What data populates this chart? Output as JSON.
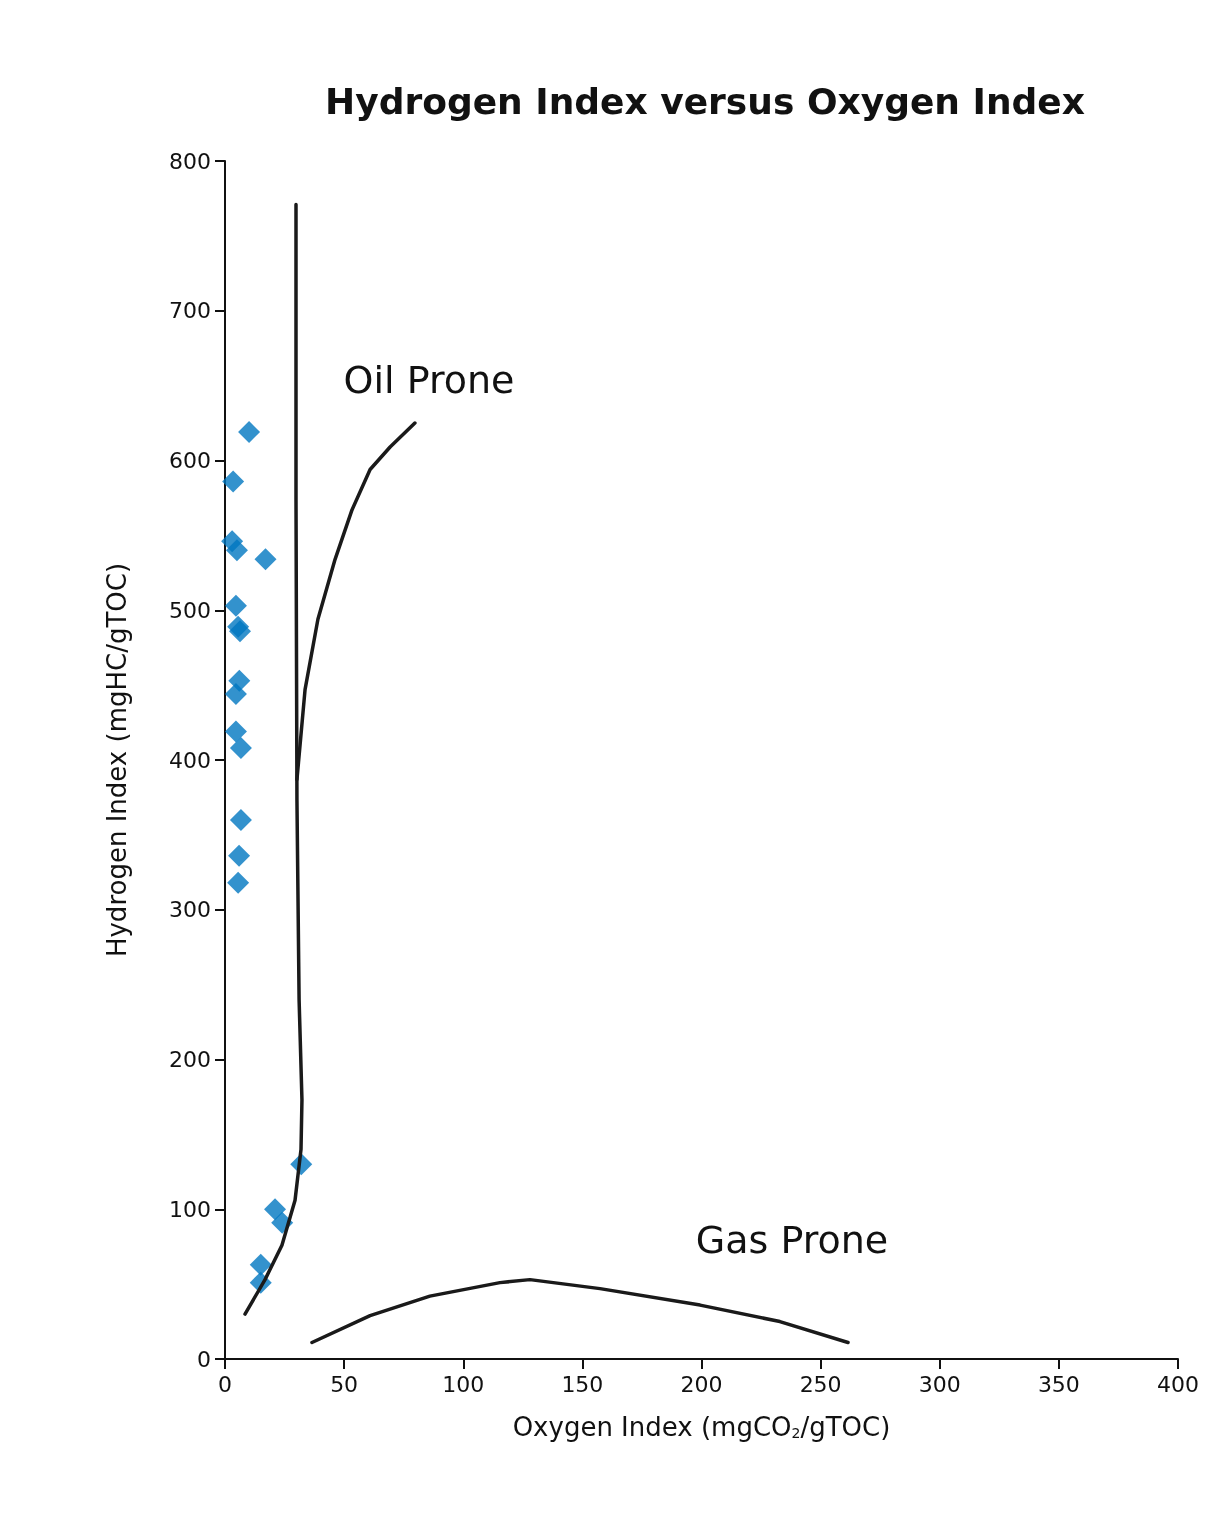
{
  "chart_data": {
    "type": "scatter",
    "title": "Hydrogen Index versus Oxygen Index",
    "xlabel": "Oxygen Index (mgCO$_{2}$/gTOC)",
    "ylabel": "Hydrogen Index (mgHC/gTOC)",
    "xlim": [
      0,
      400
    ],
    "xticks": [
      0,
      50,
      100,
      150,
      200,
      250,
      300,
      350,
      400
    ],
    "ylim": [
      0,
      800
    ],
    "yticks": [
      0,
      100,
      200,
      300,
      400,
      500,
      600,
      700,
      800
    ],
    "grid": false,
    "series": [
      {
        "marker": "diamond",
        "color": "#0077c0",
        "x": [
          10.1,
          3.4,
          3,
          5,
          17,
          4.6,
          5.5,
          6.3,
          6,
          4.6,
          4.6,
          6.7,
          6.7,
          5.9,
          5.5,
          32,
          21,
          24,
          15,
          15
        ],
        "values": [
          619,
          586,
          546,
          540,
          534,
          503,
          489,
          486,
          453,
          444,
          419,
          408,
          360,
          336,
          318,
          130,
          100,
          91,
          63,
          51
        ]
      },
      {
        "type": "line",
        "marker": "none",
        "line_style": "solid",
        "color": "#1a1a1a",
        "x": [
          8.4,
          16.8,
          23.9,
          29.4,
          31.9,
          32.3,
          31.1,
          30.2,
          29.8,
          29.8
        ],
        "values": [
          30,
          53,
          76,
          106,
          140,
          173,
          240,
          373,
          574,
          771
        ]
      },
      {
        "type": "line",
        "marker": "none",
        "line_style": "solid",
        "color": "#1a1a1a",
        "x": [
          30.2,
          33.6,
          39,
          46.2,
          53.3,
          60.9,
          69.3,
          79.7
        ],
        "values": [
          387,
          447,
          494,
          534,
          567,
          594,
          609,
          625
        ]
      },
      {
        "type": "line",
        "marker": "none",
        "line_style": "solid",
        "color": "#1a1a1a",
        "x": [
          36.5,
          60.9,
          86,
          115.4,
          128,
          157.4,
          199.4,
          232.9,
          261.5
        ],
        "values": [
          11,
          29,
          42,
          51,
          53,
          47,
          36,
          25,
          11
        ]
      }
    ],
    "annotations": [
      "Oil Prone",
      "Gas Prone"
    ]
  }
}
